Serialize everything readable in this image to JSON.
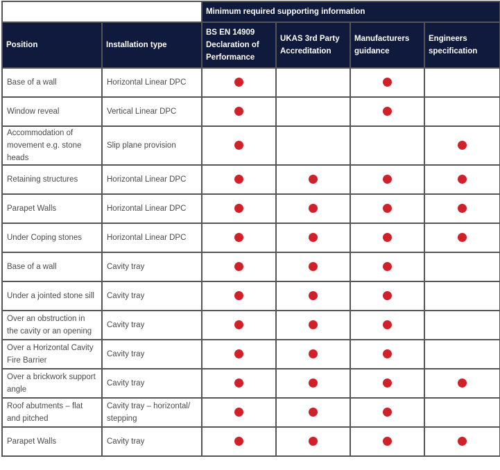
{
  "table": {
    "group_header": "Minimum required supporting information",
    "columns": [
      "Position",
      "Installation type",
      "BS EN 14909 Declaration of Performance",
      "UKAS 3rd Party Accreditation",
      "Manufacturers guidance",
      "Engineers specification"
    ],
    "marker": {
      "icon": "red-dot-icon",
      "color": "#d0202a"
    },
    "rows": [
      {
        "position": "Base of a wall",
        "installation": "Horizontal Linear DPC",
        "marks": [
          true,
          false,
          true,
          false
        ]
      },
      {
        "position": "Window reveal",
        "installation": "Vertical Linear DPC",
        "marks": [
          true,
          false,
          true,
          false
        ]
      },
      {
        "position": "Accommodation of movement e.g. stone heads",
        "installation": "Slip plane provision",
        "marks": [
          true,
          false,
          false,
          true
        ]
      },
      {
        "position": "Retaining structures",
        "installation": "Horizontal Linear DPC",
        "marks": [
          true,
          true,
          true,
          true
        ]
      },
      {
        "position": "Parapet Walls",
        "installation": "Horizontal Linear DPC",
        "marks": [
          true,
          true,
          true,
          true
        ]
      },
      {
        "position": "Under Coping stones",
        "installation": "Horizontal Linear DPC",
        "marks": [
          true,
          true,
          true,
          true
        ]
      },
      {
        "position": "Base of a wall",
        "installation": "Cavity tray",
        "marks": [
          true,
          true,
          true,
          false
        ]
      },
      {
        "position": "Under a jointed stone sill",
        "installation": "Cavity tray",
        "marks": [
          true,
          true,
          true,
          false
        ]
      },
      {
        "position": "Over an obstruction in the cavity or an opening",
        "installation": "Cavity tray",
        "marks": [
          true,
          true,
          true,
          false
        ]
      },
      {
        "position": "Over a Horizontal Cavity Fire Barrier",
        "installation": "Cavity tray",
        "marks": [
          true,
          true,
          true,
          false
        ]
      },
      {
        "position": "Over a brickwork support angle",
        "installation": "Cavity tray",
        "marks": [
          true,
          true,
          true,
          true
        ]
      },
      {
        "position": "Roof abutments – flat and pitched",
        "installation": "Cavity tray – horizontal/ stepping",
        "marks": [
          true,
          true,
          true,
          false
        ]
      },
      {
        "position": "Parapet Walls",
        "installation": "Cavity tray",
        "marks": [
          true,
          true,
          true,
          true
        ]
      }
    ]
  }
}
